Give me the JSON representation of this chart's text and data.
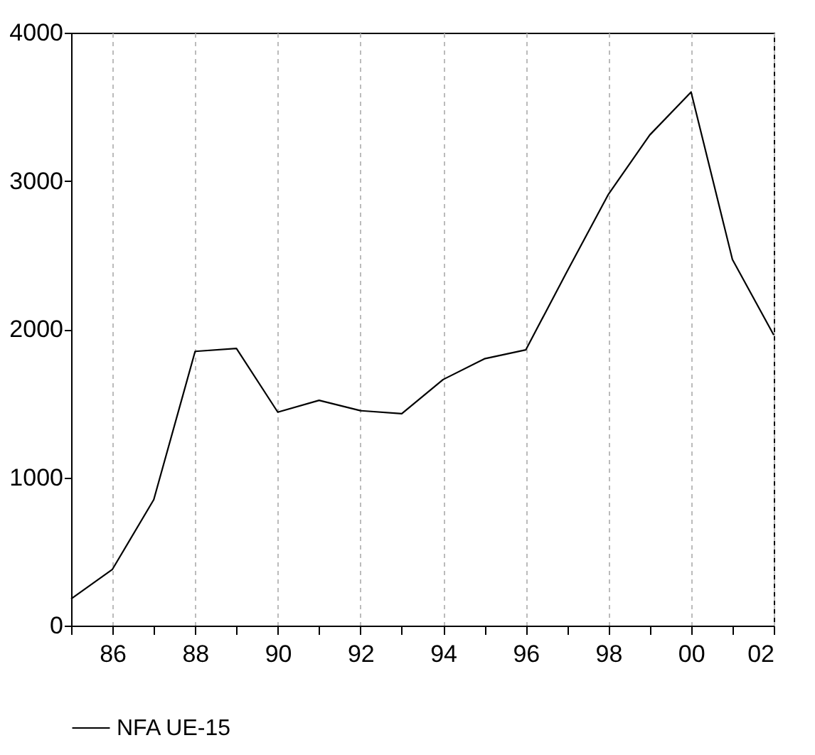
{
  "chart_data": {
    "type": "line",
    "x": [
      1985,
      1986,
      1987,
      1988,
      1989,
      1990,
      1991,
      1992,
      1993,
      1994,
      1995,
      1996,
      1997,
      1998,
      1999,
      2000,
      2001,
      2002
    ],
    "series": [
      {
        "name": "NFA UE-15",
        "color": "#000000",
        "values": [
          180,
          380,
          850,
          1850,
          1870,
          1440,
          1520,
          1450,
          1430,
          1660,
          1800,
          1860,
          2390,
          2910,
          3310,
          3600,
          2470,
          1960
        ]
      }
    ],
    "xlim": [
      1985,
      2002
    ],
    "xticks": [
      {
        "value": 1985,
        "label": null
      },
      {
        "value": 1986,
        "label": "86"
      },
      {
        "value": 1987,
        "label": null
      },
      {
        "value": 1988,
        "label": "88"
      },
      {
        "value": 1989,
        "label": null
      },
      {
        "value": 1990,
        "label": "90"
      },
      {
        "value": 1991,
        "label": null
      },
      {
        "value": 1992,
        "label": "92"
      },
      {
        "value": 1993,
        "label": null
      },
      {
        "value": 1994,
        "label": "94"
      },
      {
        "value": 1995,
        "label": null
      },
      {
        "value": 1996,
        "label": "96"
      },
      {
        "value": 1997,
        "label": null
      },
      {
        "value": 1998,
        "label": "98"
      },
      {
        "value": 1999,
        "label": null
      },
      {
        "value": 2000,
        "label": "00"
      },
      {
        "value": 2001,
        "label": null
      },
      {
        "value": 2002,
        "label": "02"
      }
    ],
    "ylim": [
      0,
      4000
    ],
    "yticks": [
      0,
      1000,
      2000,
      3000,
      4000
    ],
    "grid": "x",
    "legend": "bottom",
    "marker": "none",
    "line_style": "solid"
  }
}
